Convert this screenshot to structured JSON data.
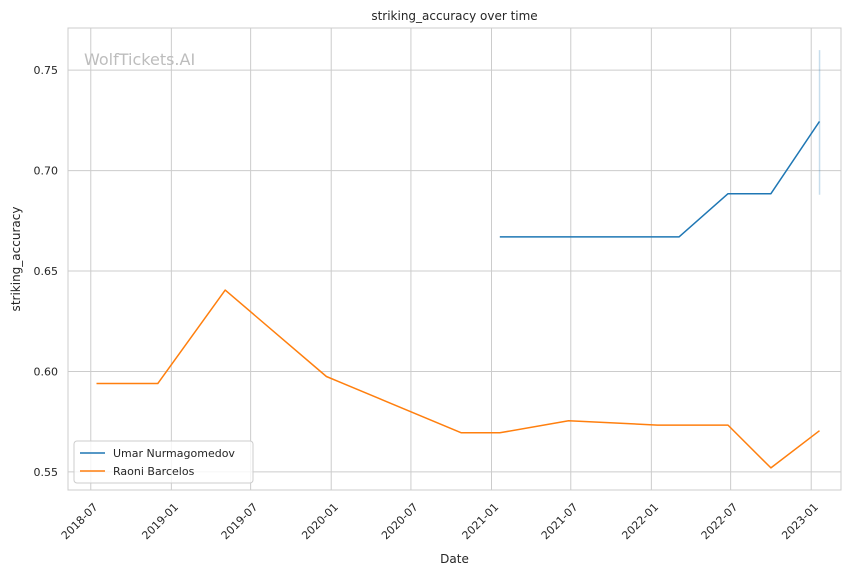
{
  "chart_data": {
    "type": "line",
    "title": "striking_accuracy over time",
    "xlabel": "Date",
    "ylabel": "striking_accuracy",
    "watermark": "WolfTickets.AI",
    "xlim": [
      "2018-05-10",
      "2023-03-10"
    ],
    "ylim": [
      0.541,
      0.771
    ],
    "x_ticks": [
      "2018-07",
      "2019-01",
      "2019-07",
      "2020-01",
      "2020-07",
      "2021-01",
      "2021-07",
      "2022-01",
      "2022-07",
      "2023-01"
    ],
    "y_ticks": [
      0.55,
      0.6,
      0.65,
      0.7,
      0.75
    ],
    "y_tick_labels": [
      "0.55",
      "0.60",
      "0.65",
      "0.70",
      "0.75"
    ],
    "grid": true,
    "legend": "lower-left",
    "series": [
      {
        "name": "Umar Nurmagomedov",
        "color": "#1f77b4",
        "points": [
          {
            "x": "2021-01-20",
            "y": 0.667
          },
          {
            "x": "2022-03-05",
            "y": 0.667
          },
          {
            "x": "2022-06-25",
            "y": 0.6885
          },
          {
            "x": "2022-10-01",
            "y": 0.6885
          },
          {
            "x": "2023-01-20",
            "y": 0.7245
          }
        ],
        "band": {
          "x": "2023-01-20",
          "low": 0.688,
          "high": 0.76
        }
      },
      {
        "name": "Raoni Barcelos",
        "color": "#ff7f0e",
        "points": [
          {
            "x": "2018-07-14",
            "y": 0.594
          },
          {
            "x": "2018-12-01",
            "y": 0.594
          },
          {
            "x": "2019-05-04",
            "y": 0.6405
          },
          {
            "x": "2019-12-21",
            "y": 0.5975
          },
          {
            "x": "2020-10-24",
            "y": 0.5695
          },
          {
            "x": "2021-01-20",
            "y": 0.5695
          },
          {
            "x": "2021-06-26",
            "y": 0.5755
          },
          {
            "x": "2022-01-15",
            "y": 0.5733
          },
          {
            "x": "2022-06-25",
            "y": 0.5733
          },
          {
            "x": "2022-10-01",
            "y": 0.552
          },
          {
            "x": "2023-01-20",
            "y": 0.5705
          }
        ]
      }
    ]
  }
}
